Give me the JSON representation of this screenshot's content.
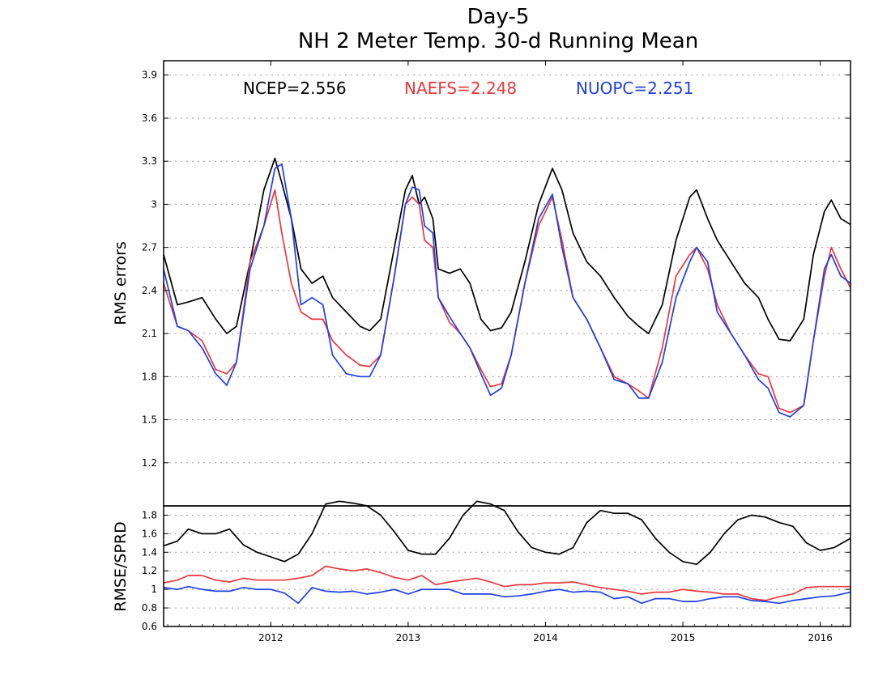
{
  "title_line1": "Day-5",
  "title_line2": "NH 2 Meter Temp. 30-d Running Mean",
  "colors": {
    "ncep": "#000000",
    "naefs": "#e8383d",
    "nuopc": "#1f3fe0"
  },
  "chart_data": [
    {
      "type": "line",
      "panel": "top",
      "ylabel": "RMS errors",
      "ylim": [
        0.9,
        4.0
      ],
      "yticks": [
        1.2,
        1.5,
        1.8,
        2.1,
        2.4,
        2.7,
        3,
        3.3,
        3.6,
        3.9
      ],
      "ytick_labels": [
        "1.2",
        "1.5",
        "1.8",
        "2.1",
        "2.4",
        "2.7",
        "3",
        "3.3",
        "3.6",
        "3.9"
      ],
      "xlim": [
        2011.22,
        2016.22
      ],
      "legend": [
        {
          "label": "NCEP=2.556",
          "series": "NCEP"
        },
        {
          "label": "NAEFS=2.248",
          "series": "NAEFS"
        },
        {
          "label": "NUOPC=2.251",
          "series": "NUOPC"
        }
      ],
      "x": [
        2011.22,
        2011.32,
        2011.4,
        2011.5,
        2011.6,
        2011.68,
        2011.75,
        2011.85,
        2011.95,
        2012.03,
        2012.08,
        2012.15,
        2012.22,
        2012.3,
        2012.38,
        2012.45,
        2012.55,
        2012.65,
        2012.72,
        2012.8,
        2012.9,
        2012.98,
        2013.03,
        2013.08,
        2013.12,
        2013.18,
        2013.22,
        2013.3,
        2013.38,
        2013.45,
        2013.53,
        2013.6,
        2013.68,
        2013.75,
        2013.85,
        2013.95,
        2014.05,
        2014.12,
        2014.2,
        2014.3,
        2014.4,
        2014.5,
        2014.6,
        2014.68,
        2014.75,
        2014.85,
        2014.95,
        2015.05,
        2015.1,
        2015.18,
        2015.25,
        2015.35,
        2015.45,
        2015.55,
        2015.62,
        2015.7,
        2015.78,
        2015.88,
        2015.95,
        2016.03,
        2016.08,
        2016.15,
        2016.22
      ],
      "series": [
        {
          "name": "NCEP",
          "color": "#000000",
          "values": [
            2.65,
            2.3,
            2.32,
            2.35,
            2.2,
            2.1,
            2.15,
            2.6,
            3.1,
            3.32,
            3.15,
            2.9,
            2.55,
            2.45,
            2.5,
            2.35,
            2.25,
            2.15,
            2.12,
            2.2,
            2.7,
            3.1,
            3.2,
            3.0,
            3.05,
            2.9,
            2.55,
            2.52,
            2.55,
            2.45,
            2.2,
            2.12,
            2.14,
            2.25,
            2.6,
            3.0,
            3.25,
            3.1,
            2.8,
            2.6,
            2.5,
            2.35,
            2.22,
            2.15,
            2.1,
            2.3,
            2.75,
            3.05,
            3.1,
            2.9,
            2.75,
            2.6,
            2.45,
            2.35,
            2.2,
            2.06,
            2.05,
            2.2,
            2.65,
            2.95,
            3.03,
            2.9,
            2.86
          ]
        },
        {
          "name": "NAEFS",
          "color": "#e8383d",
          "values": [
            2.45,
            2.15,
            2.12,
            2.05,
            1.85,
            1.82,
            1.9,
            2.6,
            2.85,
            3.1,
            2.8,
            2.45,
            2.25,
            2.2,
            2.2,
            2.05,
            1.95,
            1.88,
            1.87,
            1.95,
            2.5,
            3.0,
            3.05,
            3.0,
            2.75,
            2.7,
            2.35,
            2.18,
            2.1,
            2.0,
            1.85,
            1.73,
            1.75,
            1.95,
            2.45,
            2.85,
            3.05,
            2.75,
            2.35,
            2.2,
            2.0,
            1.8,
            1.75,
            1.7,
            1.65,
            2.0,
            2.5,
            2.65,
            2.7,
            2.55,
            2.3,
            2.1,
            1.95,
            1.82,
            1.8,
            1.58,
            1.55,
            1.6,
            2.05,
            2.5,
            2.7,
            2.55,
            2.42
          ]
        },
        {
          "name": "NUOPC",
          "color": "#1f3fe0",
          "values": [
            2.55,
            2.15,
            2.12,
            2.0,
            1.82,
            1.74,
            1.9,
            2.55,
            2.85,
            3.25,
            3.28,
            2.9,
            2.3,
            2.35,
            2.3,
            1.95,
            1.82,
            1.8,
            1.8,
            1.95,
            2.5,
            3.0,
            3.12,
            3.1,
            2.85,
            2.8,
            2.35,
            2.22,
            2.1,
            2.0,
            1.82,
            1.67,
            1.72,
            1.95,
            2.45,
            2.9,
            3.07,
            2.7,
            2.35,
            2.2,
            2.0,
            1.78,
            1.75,
            1.65,
            1.65,
            1.9,
            2.35,
            2.6,
            2.7,
            2.6,
            2.25,
            2.1,
            1.95,
            1.78,
            1.72,
            1.55,
            1.52,
            1.6,
            2.05,
            2.55,
            2.65,
            2.5,
            2.45
          ]
        }
      ]
    },
    {
      "type": "line",
      "panel": "bottom",
      "ylabel": "RMSE/SPRD",
      "ylim": [
        0.6,
        1.9
      ],
      "yticks": [
        0.6,
        0.8,
        1,
        1.2,
        1.4,
        1.6,
        1.8
      ],
      "ytick_labels": [
        "0.6",
        "0.8",
        "1",
        "1.2",
        "1.4",
        "1.6",
        "1.8"
      ],
      "xlim": [
        2011.22,
        2016.22
      ],
      "xticks": [
        2012,
        2013,
        2014,
        2015,
        2016
      ],
      "xtick_labels": [
        "2012",
        "2013",
        "2014",
        "2015",
        "2016"
      ],
      "x": [
        2011.22,
        2011.32,
        2011.4,
        2011.5,
        2011.6,
        2011.7,
        2011.8,
        2011.9,
        2012.0,
        2012.1,
        2012.2,
        2012.3,
        2012.4,
        2012.5,
        2012.6,
        2012.7,
        2012.8,
        2012.9,
        2013.0,
        2013.1,
        2013.2,
        2013.3,
        2013.4,
        2013.5,
        2013.6,
        2013.7,
        2013.8,
        2013.9,
        2014.0,
        2014.1,
        2014.2,
        2014.3,
        2014.4,
        2014.5,
        2014.6,
        2014.7,
        2014.8,
        2014.9,
        2015.0,
        2015.1,
        2015.2,
        2015.3,
        2015.4,
        2015.5,
        2015.6,
        2015.7,
        2015.8,
        2015.9,
        2016.0,
        2016.1,
        2016.22
      ],
      "series": [
        {
          "name": "NCEP",
          "color": "#000000",
          "values": [
            1.47,
            1.52,
            1.65,
            1.6,
            1.6,
            1.65,
            1.48,
            1.4,
            1.35,
            1.3,
            1.38,
            1.6,
            1.92,
            1.95,
            1.93,
            1.9,
            1.8,
            1.62,
            1.42,
            1.38,
            1.38,
            1.55,
            1.8,
            1.95,
            1.92,
            1.85,
            1.62,
            1.45,
            1.4,
            1.38,
            1.45,
            1.72,
            1.85,
            1.82,
            1.82,
            1.75,
            1.55,
            1.4,
            1.3,
            1.27,
            1.4,
            1.6,
            1.75,
            1.8,
            1.78,
            1.72,
            1.68,
            1.5,
            1.42,
            1.45,
            1.55
          ]
        },
        {
          "name": "NAEFS",
          "color": "#e8383d",
          "values": [
            1.07,
            1.1,
            1.15,
            1.15,
            1.1,
            1.08,
            1.12,
            1.1,
            1.1,
            1.1,
            1.12,
            1.15,
            1.25,
            1.22,
            1.2,
            1.22,
            1.18,
            1.13,
            1.1,
            1.15,
            1.05,
            1.08,
            1.1,
            1.12,
            1.08,
            1.03,
            1.05,
            1.05,
            1.07,
            1.07,
            1.08,
            1.05,
            1.02,
            1.0,
            0.98,
            0.95,
            0.97,
            0.97,
            1.0,
            0.98,
            0.97,
            0.95,
            0.95,
            0.9,
            0.88,
            0.92,
            0.95,
            1.02,
            1.03,
            1.03,
            1.03
          ]
        },
        {
          "name": "NUOPC",
          "color": "#1f3fe0",
          "values": [
            1.02,
            1.0,
            1.03,
            1.0,
            0.98,
            0.98,
            1.02,
            1.0,
            1.0,
            0.96,
            0.85,
            1.02,
            0.98,
            0.97,
            0.98,
            0.95,
            0.97,
            1.0,
            0.95,
            1.0,
            1.0,
            1.0,
            0.95,
            0.95,
            0.95,
            0.92,
            0.93,
            0.95,
            0.98,
            1.0,
            0.97,
            0.98,
            0.97,
            0.9,
            0.92,
            0.85,
            0.9,
            0.9,
            0.87,
            0.87,
            0.9,
            0.92,
            0.92,
            0.88,
            0.87,
            0.85,
            0.88,
            0.9,
            0.92,
            0.93,
            0.97
          ]
        }
      ]
    }
  ]
}
